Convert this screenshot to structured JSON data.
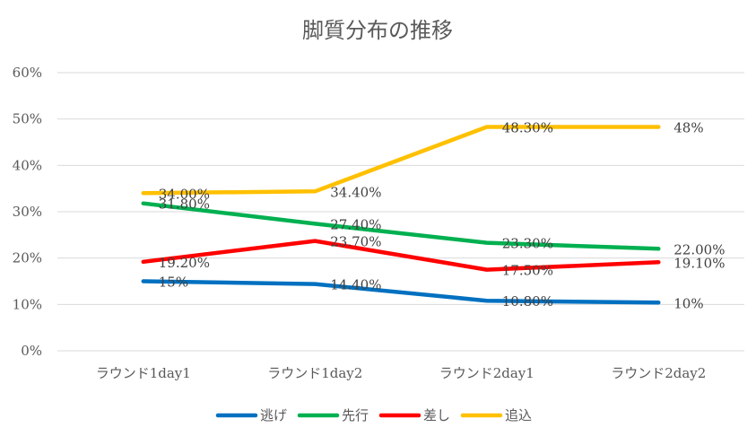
{
  "chart_data": {
    "type": "line",
    "title": "脚質分布の推移",
    "categories": [
      "ラウンド1day1",
      "ラウンド1day2",
      "ラウンド2day1",
      "ラウンド2day2"
    ],
    "y_ticks": [
      "0%",
      "10%",
      "20%",
      "30%",
      "40%",
      "50%",
      "60%"
    ],
    "ylim": [
      0,
      60
    ],
    "grid": true,
    "legend_position": "bottom",
    "series": [
      {
        "name": "逃げ",
        "color": "#0070c0",
        "values": [
          15,
          14.4,
          10.8,
          10.4
        ],
        "labels": [
          "15%",
          "14.40%",
          "10.80%",
          "10%"
        ]
      },
      {
        "name": "先行",
        "color": "#00b050",
        "values": [
          31.8,
          27.4,
          23.3,
          22.0
        ],
        "labels": [
          "31.80%",
          "27.40%",
          "23.30%",
          "22.00%"
        ]
      },
      {
        "name": "差し",
        "color": "#ff0000",
        "values": [
          19.2,
          23.7,
          17.5,
          19.1
        ],
        "labels": [
          "19.20%",
          "23.70%",
          "17.50%",
          "19.10%"
        ]
      },
      {
        "name": "追込",
        "color": "#ffc000",
        "values": [
          34.0,
          34.4,
          48.3,
          48.3
        ],
        "labels": [
          "34.00%",
          "34.40%",
          "48.30%",
          "48%"
        ]
      }
    ]
  }
}
